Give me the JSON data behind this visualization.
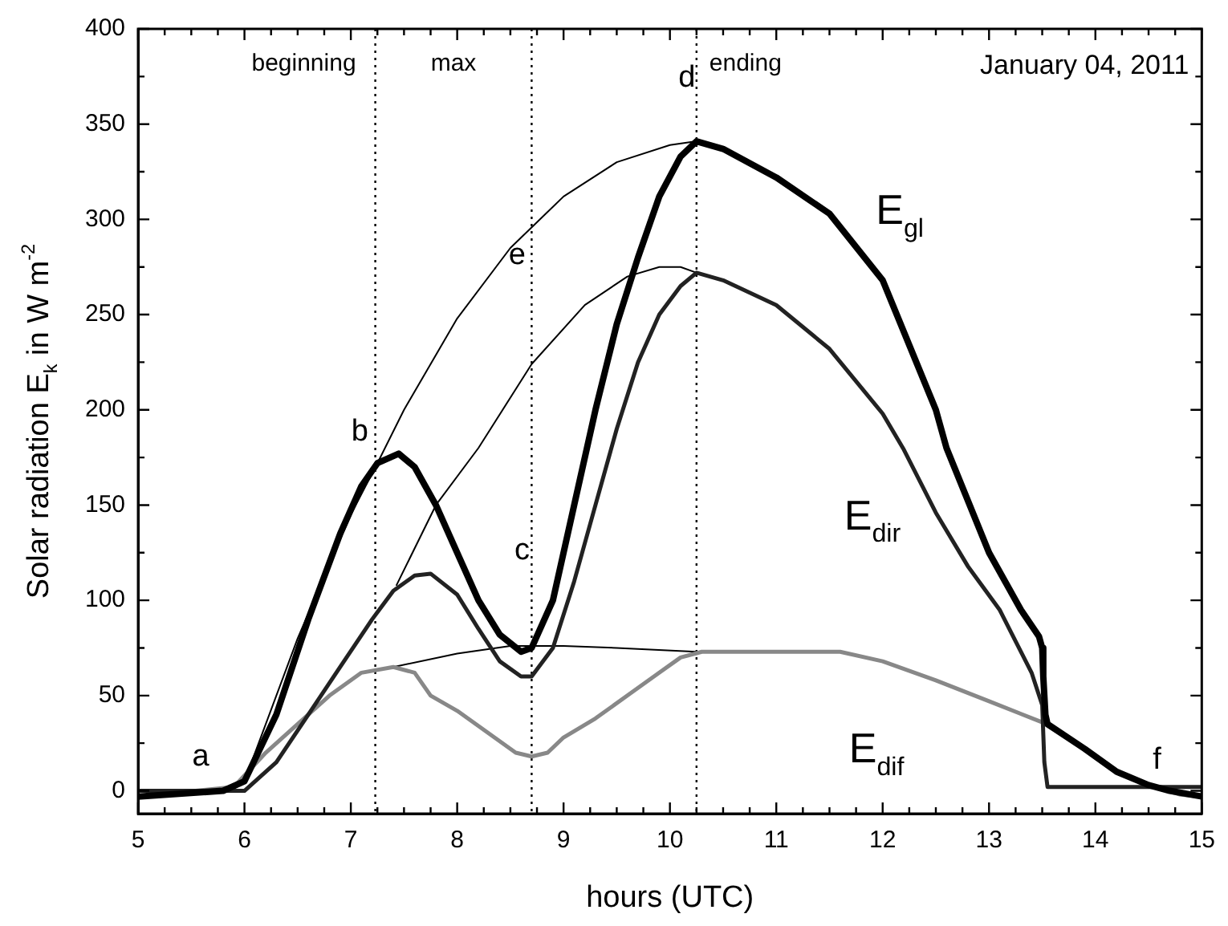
{
  "chart_data": {
    "type": "line",
    "xlabel": "hours (UTC)",
    "ylabel": "Solar radiation E$_{k}$ in W m$^{-2}$",
    "xlim": [
      5,
      15
    ],
    "ylim": [
      -12,
      400
    ],
    "xticks": [
      5,
      {
        "value": 5.25,
        "label": null
      },
      {
        "value": 5.5,
        "label": null
      },
      {
        "value": 5.75,
        "label": null
      },
      6,
      {
        "value": 6.25,
        "label": null
      },
      {
        "value": 6.5,
        "label": null
      },
      {
        "value": 6.75,
        "label": null
      },
      7,
      {
        "value": 7.25,
        "label": null
      },
      {
        "value": 7.5,
        "label": null
      },
      {
        "value": 7.75,
        "label": null
      },
      8,
      {
        "value": 8.25,
        "label": null
      },
      {
        "value": 8.5,
        "label": null
      },
      {
        "value": 8.75,
        "label": null
      },
      9,
      {
        "value": 9.25,
        "label": null
      },
      {
        "value": 9.5,
        "label": null
      },
      {
        "value": 9.75,
        "label": null
      },
      10,
      {
        "value": 10.25,
        "label": null
      },
      {
        "value": 10.5,
        "label": null
      },
      {
        "value": 10.75,
        "label": null
      },
      11,
      {
        "value": 11.25,
        "label": null
      },
      {
        "value": 11.5,
        "label": null
      },
      {
        "value": 11.75,
        "label": null
      },
      12,
      {
        "value": 12.25,
        "label": null
      },
      {
        "value": 12.5,
        "label": null
      },
      {
        "value": 12.75,
        "label": null
      },
      13,
      {
        "value": 13.25,
        "label": null
      },
      {
        "value": 13.5,
        "label": null
      },
      {
        "value": 13.75,
        "label": null
      },
      14,
      {
        "value": 14.25,
        "label": null
      },
      {
        "value": 14.5,
        "label": null
      },
      {
        "value": 14.75,
        "label": null
      },
      15
    ],
    "yticks": [
      0,
      {
        "value": 25,
        "label": null
      },
      50,
      {
        "value": 75,
        "label": null
      },
      100,
      {
        "value": 125,
        "label": null
      },
      150,
      {
        "value": 175,
        "label": null
      },
      200,
      {
        "value": 225,
        "label": null
      },
      250,
      {
        "value": 275,
        "label": null
      },
      300,
      {
        "value": 325,
        "label": null
      },
      350,
      {
        "value": 375,
        "label": null
      },
      400
    ],
    "grid": false,
    "legend": false,
    "marker": "none",
    "line_style": "solid",
    "series": [
      {
        "name": "E$_{gl}$",
        "color": "#000000",
        "x": [
          5.0,
          5.8,
          6.0,
          6.3,
          6.6,
          6.9,
          7.1,
          7.25,
          7.45,
          7.6,
          7.8,
          8.0,
          8.2,
          8.4,
          8.6,
          8.7,
          8.9,
          9.1,
          9.3,
          9.5,
          9.7,
          9.9,
          10.1,
          10.25,
          10.5,
          11.0,
          11.5,
          12.0,
          12.5,
          12.6,
          13.0,
          13.3,
          13.47,
          13.5,
          13.51,
          13.52,
          13.53,
          13.55,
          13.9,
          14.2,
          14.5,
          14.7,
          15.0
        ],
        "values": [
          -3,
          0,
          5,
          40,
          90,
          135,
          160,
          172,
          177,
          170,
          150,
          125,
          100,
          82,
          73,
          75,
          100,
          150,
          200,
          245,
          280,
          312,
          333,
          341,
          337,
          322,
          303,
          268,
          200,
          180,
          125,
          95,
          81,
          75,
          60,
          50,
          40,
          35,
          22,
          10,
          3,
          0,
          -3
        ]
      },
      {
        "name": "E$_{dir}$",
        "color": "#222222",
        "x": [
          5.0,
          6.0,
          6.3,
          6.6,
          6.9,
          7.2,
          7.4,
          7.6,
          7.75,
          8.0,
          8.2,
          8.4,
          8.6,
          8.7,
          8.9,
          9.1,
          9.3,
          9.5,
          9.7,
          9.9,
          10.1,
          10.25,
          10.5,
          11.0,
          11.5,
          12.0,
          12.2,
          12.5,
          12.8,
          13.1,
          13.4,
          13.5,
          13.52,
          13.55,
          15.0
        ],
        "values": [
          0,
          0,
          15,
          40,
          65,
          90,
          105,
          113,
          114,
          103,
          85,
          68,
          60,
          60,
          75,
          110,
          150,
          190,
          225,
          250,
          265,
          272,
          268,
          255,
          232,
          198,
          179,
          146,
          118,
          95,
          62,
          45,
          15,
          2,
          2
        ]
      },
      {
        "name": "E$_{dif}$",
        "color": "#888888",
        "x": [
          5.0,
          5.9,
          6.2,
          6.5,
          6.8,
          7.1,
          7.4,
          7.6,
          7.75,
          8.0,
          8.3,
          8.55,
          8.7,
          8.85,
          9.0,
          9.3,
          9.6,
          9.9,
          10.1,
          10.3,
          11.0,
          11.6,
          12.0,
          12.5,
          13.0,
          13.5,
          13.9,
          14.2,
          14.5,
          14.8,
          15.0
        ],
        "values": [
          -3,
          2,
          20,
          35,
          50,
          62,
          65,
          62,
          50,
          42,
          30,
          20,
          18,
          20,
          28,
          38,
          50,
          62,
          70,
          73,
          73,
          73,
          68,
          58,
          47,
          36,
          22,
          10,
          3,
          -2,
          -3
        ]
      },
      {
        "color": "#000000",
        "x": [
          6.0,
          6.5,
          7.0,
          7.25,
          7.5,
          8.0,
          8.5,
          9.0,
          9.5,
          10.0,
          10.25
        ],
        "values": [
          5,
          80,
          145,
          172,
          200,
          248,
          285,
          312,
          330,
          339,
          341
        ]
      },
      {
        "color": "#000000",
        "x": [
          7.43,
          7.8,
          8.2,
          8.7,
          9.2,
          9.6,
          9.9,
          10.1,
          10.25
        ],
        "values": [
          108,
          150,
          180,
          224,
          255,
          270,
          275,
          275,
          272
        ]
      },
      {
        "color": "#000000",
        "x": [
          7.4,
          8.0,
          8.5,
          9.0,
          9.5,
          10.25
        ],
        "values": [
          65,
          72,
          76,
          76,
          75,
          73
        ]
      }
    ],
    "ref_lines": [
      {
        "axis": "x",
        "value": 7.23,
        "line_style": "dotted",
        "color": "#000000"
      },
      {
        "axis": "x",
        "value": 8.7,
        "line_style": "dotted",
        "color": "#000000"
      },
      {
        "axis": "x",
        "value": 10.25,
        "line_style": "dotted",
        "color": "#000000"
      }
    ],
    "annotations": [
      "beginning",
      "max",
      "ending",
      "January 04, 2011",
      {
        "text": "a",
        "x": 5.8,
        "y": 0
      },
      {
        "text": "b",
        "x": 7.25,
        "y": 172
      },
      {
        "text": "c",
        "x": 8.7,
        "y": 75
      },
      {
        "text": "d",
        "x": 10.25,
        "y": 341
      },
      {
        "text": "e",
        "x": 8.7,
        "y": 296
      },
      {
        "text": "f",
        "x": 14.7,
        "y": 0
      }
    ]
  }
}
